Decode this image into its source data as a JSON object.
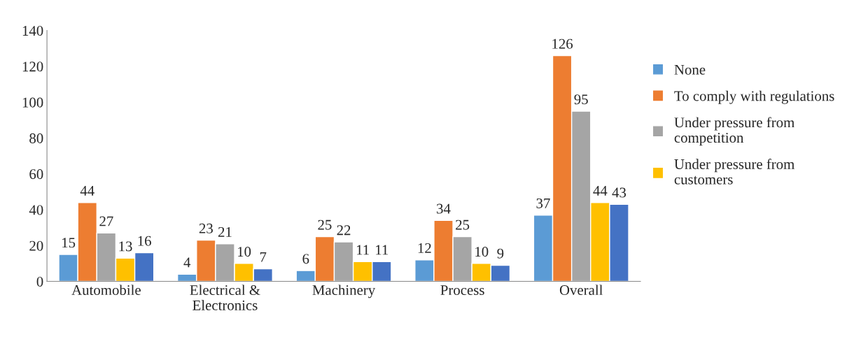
{
  "chart_data": {
    "type": "bar",
    "categories": [
      "Automobile",
      "Electrical &\nElectronics",
      "Machinery",
      "Process",
      "Overall"
    ],
    "series": [
      {
        "name": "None",
        "color": "#5b9bd5",
        "values": [
          15,
          4,
          6,
          12,
          37
        ]
      },
      {
        "name": "To comply with regulations",
        "color": "#ed7d31",
        "values": [
          44,
          23,
          25,
          34,
          126
        ]
      },
      {
        "name": "Under pressure from\ncompetition",
        "color": "#a5a5a5",
        "values": [
          27,
          21,
          22,
          25,
          95
        ]
      },
      {
        "name": "Under pressure from\ncustomers",
        "color": "#ffc000",
        "values": [
          13,
          10,
          11,
          10,
          44
        ]
      },
      {
        "color": "#4472c4",
        "values": [
          16,
          7,
          11,
          9,
          43
        ]
      }
    ],
    "ylim": [
      0,
      140
    ],
    "yticks": [
      0,
      20,
      40,
      60,
      80,
      100,
      120,
      140
    ],
    "data_labels": true,
    "grid": false,
    "legend": "right"
  }
}
